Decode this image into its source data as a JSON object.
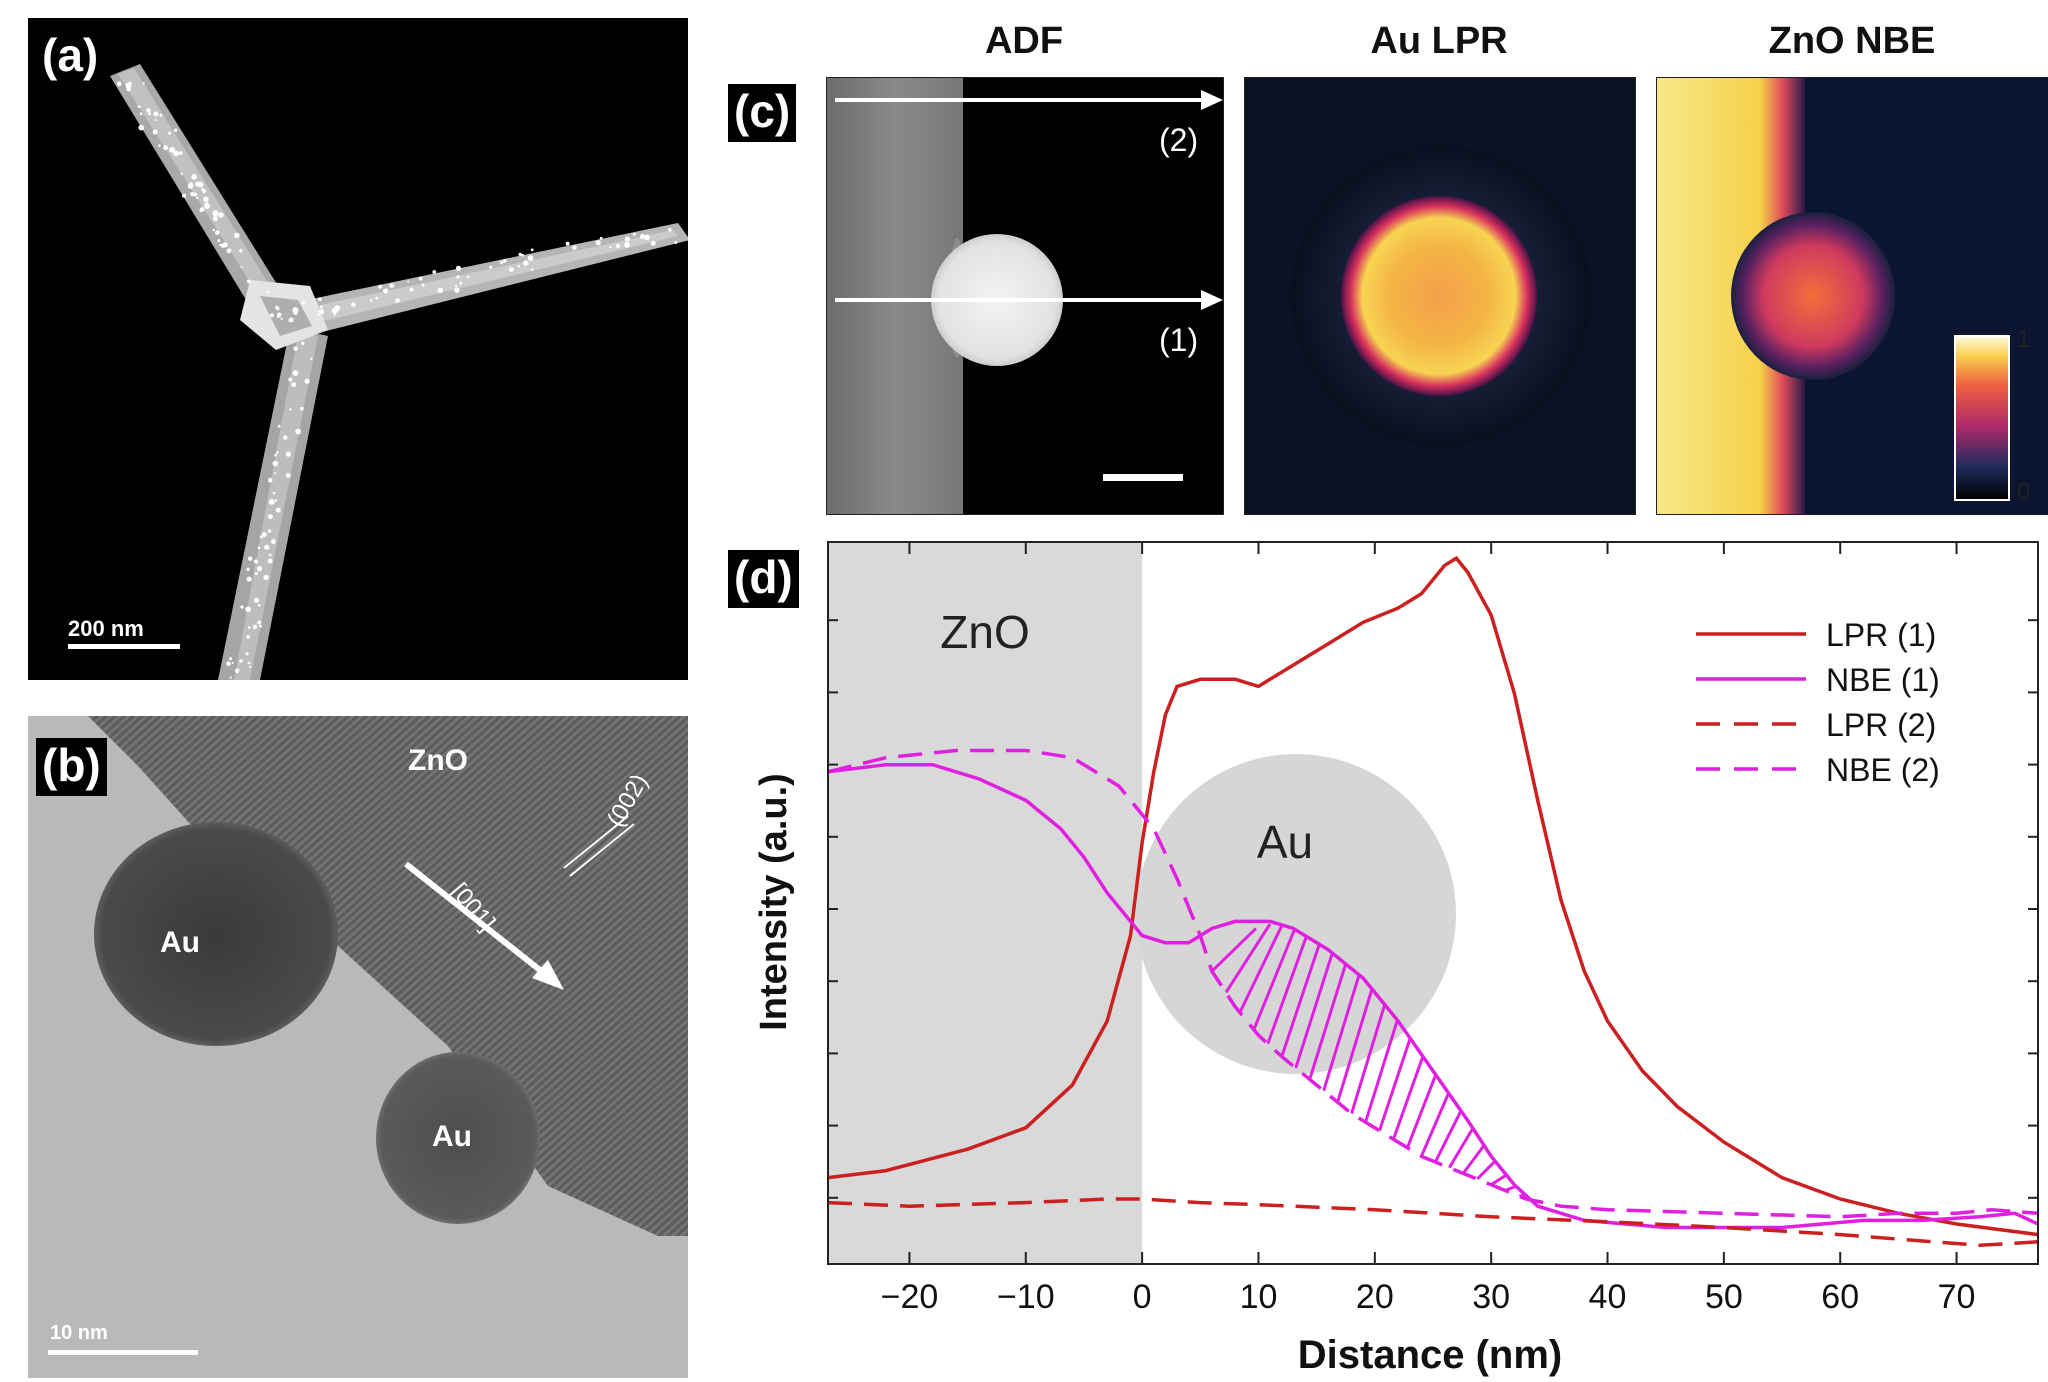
{
  "panels": {
    "a": {
      "label": "(a)",
      "scale_bar": "200 nm"
    },
    "b": {
      "label": "(b)",
      "zno": "ZnO",
      "au1": "Au",
      "au2": "Au",
      "direction": "[001]",
      "plane": "(002)",
      "scale_bar": "10 nm"
    },
    "c": {
      "label": "(c)",
      "titles": [
        "ADF",
        "Au LPR",
        "ZnO NBE"
      ],
      "line1": "(1)",
      "line2": "(2)",
      "colorbar_max": "1",
      "colorbar_min": "0"
    },
    "d": {
      "label": "(d)",
      "zno_region": "ZnO",
      "au_label": "Au"
    }
  },
  "chart_data": {
    "type": "line",
    "xlabel": "Distance (nm)",
    "ylabel": "Intensity (a.u.)",
    "xlim": [
      -27,
      77
    ],
    "ylim": [
      0,
      1
    ],
    "xticks": [
      -20,
      -10,
      0,
      10,
      20,
      30,
      40,
      50,
      60,
      70
    ],
    "xtick_labels": [
      "−20",
      "−10",
      "0",
      "10",
      "20",
      "30",
      "40",
      "50",
      "60",
      "70"
    ],
    "legend_position": "top-right",
    "shaded_region_x": [
      -27,
      0
    ],
    "series": [
      {
        "name": "LPR (1)",
        "color": "#cc1f1f",
        "dash": "solid",
        "points": [
          [
            -27,
            0.11
          ],
          [
            -22,
            0.12
          ],
          [
            -15,
            0.15
          ],
          [
            -10,
            0.18
          ],
          [
            -6,
            0.24
          ],
          [
            -3,
            0.33
          ],
          [
            -1,
            0.45
          ],
          [
            0,
            0.58
          ],
          [
            1,
            0.68
          ],
          [
            2,
            0.76
          ],
          [
            3,
            0.8
          ],
          [
            5,
            0.81
          ],
          [
            8,
            0.81
          ],
          [
            10,
            0.8
          ],
          [
            13,
            0.83
          ],
          [
            16,
            0.86
          ],
          [
            19,
            0.89
          ],
          [
            22,
            0.91
          ],
          [
            24,
            0.93
          ],
          [
            26,
            0.97
          ],
          [
            27,
            0.98
          ],
          [
            28,
            0.96
          ],
          [
            30,
            0.9
          ],
          [
            32,
            0.79
          ],
          [
            34,
            0.64
          ],
          [
            36,
            0.5
          ],
          [
            38,
            0.4
          ],
          [
            40,
            0.33
          ],
          [
            43,
            0.26
          ],
          [
            46,
            0.21
          ],
          [
            50,
            0.16
          ],
          [
            55,
            0.11
          ],
          [
            60,
            0.08
          ],
          [
            65,
            0.06
          ],
          [
            70,
            0.045
          ],
          [
            77,
            0.03
          ]
        ]
      },
      {
        "name": "NBE (1)",
        "color": "#e020e0",
        "dash": "solid",
        "points": [
          [
            -27,
            0.68
          ],
          [
            -22,
            0.69
          ],
          [
            -18,
            0.69
          ],
          [
            -14,
            0.67
          ],
          [
            -10,
            0.64
          ],
          [
            -7,
            0.6
          ],
          [
            -5,
            0.56
          ],
          [
            -3,
            0.51
          ],
          [
            -1,
            0.47
          ],
          [
            0,
            0.45
          ],
          [
            2,
            0.44
          ],
          [
            4,
            0.44
          ],
          [
            6,
            0.46
          ],
          [
            8,
            0.47
          ],
          [
            11,
            0.47
          ],
          [
            13,
            0.46
          ],
          [
            16,
            0.43
          ],
          [
            19,
            0.39
          ],
          [
            22,
            0.33
          ],
          [
            25,
            0.26
          ],
          [
            28,
            0.19
          ],
          [
            30,
            0.14
          ],
          [
            32,
            0.1
          ],
          [
            34,
            0.07
          ],
          [
            38,
            0.05
          ],
          [
            45,
            0.04
          ],
          [
            55,
            0.04
          ],
          [
            62,
            0.05
          ],
          [
            67,
            0.05
          ],
          [
            72,
            0.055
          ],
          [
            75,
            0.06
          ],
          [
            77,
            0.045
          ]
        ]
      },
      {
        "name": "LPR (2)",
        "color": "#cc1f1f",
        "dash": "dashed",
        "points": [
          [
            -27,
            0.075
          ],
          [
            -20,
            0.07
          ],
          [
            -10,
            0.075
          ],
          [
            -3,
            0.08
          ],
          [
            0,
            0.08
          ],
          [
            5,
            0.075
          ],
          [
            10,
            0.072
          ],
          [
            20,
            0.065
          ],
          [
            30,
            0.055
          ],
          [
            40,
            0.048
          ],
          [
            50,
            0.04
          ],
          [
            60,
            0.03
          ],
          [
            68,
            0.02
          ],
          [
            72,
            0.015
          ],
          [
            77,
            0.02
          ]
        ]
      },
      {
        "name": "NBE (2)",
        "color": "#e020e0",
        "dash": "dashed",
        "points": [
          [
            -27,
            0.68
          ],
          [
            -22,
            0.7
          ],
          [
            -16,
            0.71
          ],
          [
            -10,
            0.71
          ],
          [
            -6,
            0.7
          ],
          [
            -2,
            0.66
          ],
          [
            1,
            0.6
          ],
          [
            3,
            0.53
          ],
          [
            5,
            0.45
          ],
          [
            6,
            0.4
          ],
          [
            8,
            0.35
          ],
          [
            10,
            0.31
          ],
          [
            12,
            0.28
          ],
          [
            15,
            0.24
          ],
          [
            18,
            0.2
          ],
          [
            21,
            0.17
          ],
          [
            24,
            0.14
          ],
          [
            27,
            0.12
          ],
          [
            30,
            0.1
          ],
          [
            33,
            0.08
          ],
          [
            36,
            0.07
          ],
          [
            40,
            0.065
          ],
          [
            50,
            0.06
          ],
          [
            60,
            0.055
          ],
          [
            65,
            0.06
          ],
          [
            70,
            0.06
          ],
          [
            73,
            0.065
          ],
          [
            77,
            0.06
          ]
        ]
      }
    ]
  }
}
